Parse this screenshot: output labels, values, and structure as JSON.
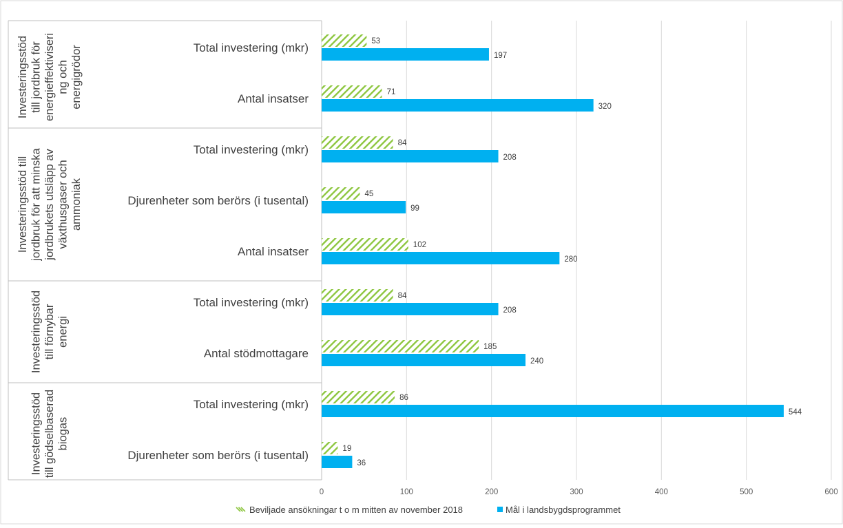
{
  "chart_data": {
    "type": "bar",
    "orientation": "horizontal",
    "title": "",
    "xlabel": "",
    "ylabel": "",
    "xlim": [
      0,
      600
    ],
    "xticks": [
      0,
      100,
      200,
      300,
      400,
      500,
      600
    ],
    "grid": true,
    "legend_position": "bottom",
    "colors": {
      "approved": "#8dc63f",
      "target": "#00b0f0"
    },
    "series": [
      {
        "name": "Beviljade ansökningar t o m mitten av november 2018",
        "style": "hatched"
      },
      {
        "name": "Mål i landsbygdsprogrammet",
        "style": "solid"
      }
    ],
    "groups": [
      {
        "label_lines": [
          "Investeringsstöd",
          "till jordbruk för",
          "energieffektiviseri",
          "ng och",
          "energigrödor"
        ],
        "categories": [
          {
            "label": "Total investering (mkr)",
            "values": [
              53,
              197
            ]
          },
          {
            "label": "Antal insatser",
            "values": [
              71,
              320
            ]
          }
        ]
      },
      {
        "label_lines": [
          "Investeringsstöd till",
          "jordbruk för att minska",
          "jordbrukets utsläpp av",
          "växthusgaser och",
          "ammoniak"
        ],
        "categories": [
          {
            "label": "Total investering (mkr)",
            "values": [
              84,
              208
            ]
          },
          {
            "label": "Djurenheter som berörs (i tusental)",
            "values": [
              45,
              99
            ]
          },
          {
            "label": "Antal insatser",
            "values": [
              102,
              280
            ]
          }
        ]
      },
      {
        "label_lines": [
          "Investeringsstöd",
          "till förnybar",
          "energi"
        ],
        "categories": [
          {
            "label": "Total investering (mkr)",
            "values": [
              84,
              208
            ]
          },
          {
            "label": "Antal stödmottagare",
            "values": [
              185,
              240
            ]
          }
        ]
      },
      {
        "label_lines": [
          "Investeringsstöd",
          "till gödselbaserad",
          "biogas"
        ],
        "categories": [
          {
            "label": "Total investering (mkr)",
            "values": [
              86,
              544
            ]
          },
          {
            "label": "Djurenheter som berörs (i tusental)",
            "values": [
              19,
              36
            ]
          }
        ]
      }
    ]
  }
}
